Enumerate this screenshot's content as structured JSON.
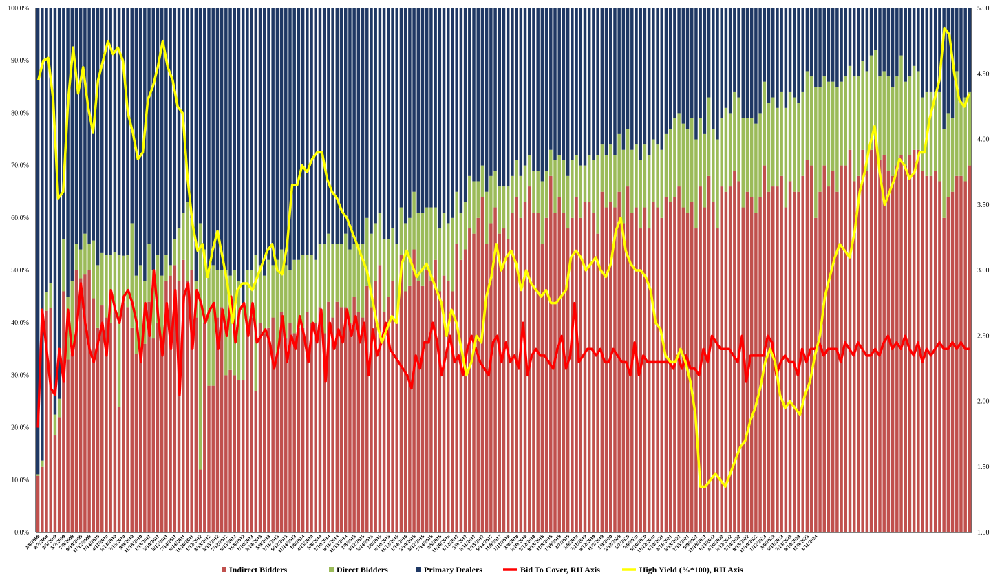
{
  "chart_data": {
    "type": "bar",
    "stacked": true,
    "title": "",
    "left_axis": {
      "ticks": [
        "0.0%",
        "10.0%",
        "20.0%",
        "30.0%",
        "40.0%",
        "50.0%",
        "60.0%",
        "70.0%",
        "80.0%",
        "90.0%",
        "100.0%"
      ],
      "range": [
        0,
        100
      ]
    },
    "right_axis": {
      "ticks": [
        "1.00",
        "1.50",
        "2.00",
        "2.50",
        "3.00",
        "3.50",
        "4.00",
        "4.50",
        "5.00"
      ],
      "range": [
        1.0,
        5.0
      ]
    },
    "x_tick_labels": [
      "2/8/2008",
      "8/7/2008",
      "2/5/2009",
      "5/7/2009",
      "7/9/2009",
      "9/10/2009",
      "11/12/2009",
      "1/14/2010",
      "3/11/2010",
      "5/13/2010",
      "7/15/2010",
      "9/9/2010",
      "11/18/2010",
      "1/13/2011",
      "3/10/2011",
      "5/12/2011",
      "7/14/2011",
      "9/14/2011",
      "11/10/2011",
      "1/12/2012",
      "3/13/2012",
      "5/15/2012",
      "7/12/2012",
      "9/13/2012",
      "11/8/2012",
      "1/10/2013",
      "3/14/2013",
      "5/9/2013",
      "7/11/2013",
      "9/12/2013",
      "11/14/2013",
      "1/9/2014",
      "3/13/2014",
      "5/8/2014",
      "7/10/2014",
      "9/11/2014",
      "11/13/2014",
      "1/8/2015",
      "3/12/2015",
      "5/14/2015",
      "7/9/2015",
      "9/10/2015",
      "11/12/2015",
      "1/14/2016",
      "3/10/2016",
      "5/12/2016",
      "7/14/2016",
      "9/8/2016",
      "11/10/2016",
      "1/12/2017",
      "3/9/2017",
      "5/11/2017",
      "7/13/2017",
      "9/14/2017",
      "11/9/2017",
      "1/11/2018",
      "3/8/2018",
      "5/10/2018",
      "7/12/2018",
      "9/13/2018",
      "11/8/2018",
      "1/10/2019",
      "3/7/2019",
      "5/9/2019",
      "7/11/2019",
      "9/12/2019",
      "11/7/2019",
      "1/9/2020",
      "3/12/2020",
      "5/7/2020",
      "7/9/2020",
      "9/10/2020",
      "11/12/2020",
      "1/14/2021",
      "3/11/2021",
      "5/13/2021",
      "7/15/2021",
      "9/9/2021",
      "11/10/2021",
      "1/13/2022",
      "3/10/2022",
      "5/12/2022",
      "7/14/2022",
      "9/13/2022",
      "11/10/2022",
      "1/12/2023",
      "3/9/2023",
      "5/11/2023",
      "7/13/2023",
      "9/14/2023",
      "11/9/2023",
      "1/11/2024"
    ],
    "bars_per_label": 2,
    "indirect": [
      10.8,
      12.5,
      42.3,
      42.8,
      18.5,
      22,
      46,
      33,
      34,
      50,
      48.5,
      49.2,
      50,
      44.7,
      39,
      43.3,
      41,
      40,
      42,
      24,
      43.8,
      43,
      39,
      34,
      35,
      36,
      44,
      37,
      40,
      35,
      48,
      49,
      51,
      48,
      52,
      48,
      50,
      41,
      12,
      40,
      28,
      28,
      41,
      43,
      30,
      31,
      30,
      29,
      29,
      39,
      41,
      27,
      40,
      38,
      39,
      41,
      34,
      42,
      37,
      40,
      38,
      39,
      39,
      42,
      40,
      40,
      43,
      38,
      44,
      41,
      44,
      43,
      43,
      40,
      45,
      42,
      41,
      47,
      43,
      48,
      51,
      42,
      45,
      48,
      40,
      53,
      46,
      47,
      54,
      48,
      47,
      50,
      48,
      52,
      46,
      49,
      48,
      46,
      55,
      52,
      54,
      58,
      57,
      60,
      64,
      55,
      59,
      62,
      57,
      58,
      56,
      61,
      64,
      60,
      63,
      66,
      61,
      61,
      55,
      60,
      68,
      61,
      64,
      61,
      58,
      60,
      64,
      60,
      63,
      63,
      61,
      57,
      65,
      62,
      63,
      62,
      65,
      59,
      66,
      61,
      62,
      58,
      62,
      58,
      63,
      62,
      60,
      64,
      63,
      64,
      66,
      62,
      61,
      63,
      58,
      66,
      62,
      68,
      63,
      58,
      66,
      65,
      66,
      69,
      67,
      62,
      65,
      64,
      61,
      64,
      70,
      65,
      66,
      66,
      68,
      62,
      67,
      65,
      65,
      68,
      71,
      70,
      60,
      65,
      70,
      66,
      69,
      65,
      70,
      70,
      73,
      67,
      68,
      73,
      69,
      73,
      75,
      71,
      72,
      69,
      68,
      70,
      72,
      70,
      72,
      73,
      73,
      69,
      68,
      68,
      69,
      67,
      60,
      64,
      65,
      68,
      68,
      67,
      70
    ],
    "direct": [
      0.3,
      1.2,
      3.5,
      4.8,
      4,
      3.5,
      10,
      12,
      14,
      5,
      5.5,
      7.8,
      5,
      11,
      12,
      10,
      12,
      13,
      11.5,
      29,
      9,
      10,
      20,
      15,
      16,
      12,
      11,
      13,
      13,
      14,
      5,
      2,
      5,
      10,
      9,
      15,
      10,
      7,
      47,
      14,
      22,
      23,
      9,
      7,
      20,
      18,
      20,
      19,
      14,
      11,
      9,
      26,
      11,
      11,
      13,
      10,
      18,
      12,
      14,
      10,
      14,
      13,
      14,
      11,
      13,
      12,
      12,
      17,
      13,
      14,
      11,
      12,
      14,
      14,
      10,
      13,
      14,
      13,
      14,
      11,
      10,
      14,
      11,
      10,
      15,
      9,
      13,
      13,
      11,
      13,
      14,
      12,
      14,
      10,
      12,
      12,
      11,
      14,
      10,
      9,
      9,
      10,
      10,
      7,
      6,
      10,
      9,
      7,
      9,
      8,
      10,
      7,
      7,
      8,
      7,
      6,
      8,
      8,
      12,
      9,
      5,
      10,
      8,
      10,
      10,
      11,
      8,
      10,
      7,
      9,
      10,
      15,
      9,
      10,
      11,
      10,
      11,
      14,
      11,
      12,
      12,
      13,
      12,
      14,
      12,
      12,
      13,
      12,
      14,
      15,
      14,
      16,
      16,
      16,
      17,
      13,
      14,
      15,
      14,
      17,
      13,
      16,
      14,
      15,
      16,
      17,
      14,
      15,
      17,
      16,
      16,
      17,
      17,
      15,
      16,
      19,
      17,
      18,
      17,
      16,
      17,
      17,
      25,
      20,
      17,
      20,
      17,
      20,
      16,
      17,
      16,
      20,
      19,
      17,
      19,
      18,
      17,
      16,
      16,
      18,
      17,
      17,
      19,
      16,
      15,
      16,
      15,
      14,
      16,
      16,
      15,
      17,
      17,
      16,
      14,
      20,
      14,
      16,
      14,
      14,
      13,
      15
    ]
  },
  "secondary_series": {
    "bid_to_cover": [
      1.8,
      2.7,
      2.4,
      2.1,
      2.05,
      2.4,
      2.15,
      2.7,
      2.35,
      2.55,
      2.9,
      2.6,
      2.4,
      2.3,
      2.45,
      2.6,
      2.35,
      2.85,
      2.7,
      2.6,
      2.8,
      2.85,
      2.75,
      2.6,
      2.3,
      2.75,
      2.5,
      3.0,
      2.65,
      2.35,
      2.75,
      2.4,
      2.85,
      2.05,
      2.8,
      2.9,
      2.4,
      2.85,
      2.75,
      2.6,
      2.7,
      2.75,
      2.4,
      2.7,
      2.5,
      2.8,
      2.45,
      2.7,
      2.75,
      2.5,
      2.75,
      2.45,
      2.5,
      2.55,
      2.45,
      2.25,
      2.4,
      2.65,
      2.3,
      2.5,
      2.4,
      2.65,
      2.5,
      2.3,
      2.6,
      2.45,
      2.7,
      2.15,
      2.6,
      2.4,
      2.55,
      2.45,
      2.7,
      2.5,
      2.65,
      2.45,
      2.6,
      2.2,
      2.55,
      2.35,
      2.45,
      2.6,
      2.4,
      2.35,
      2.3,
      2.25,
      2.2,
      2.1,
      2.35,
      2.25,
      2.45,
      2.45,
      2.6,
      2.45,
      2.2,
      2.35,
      2.5,
      2.3,
      2.35,
      2.2,
      2.4,
      2.5,
      2.4,
      2.3,
      2.25,
      2.2,
      2.45,
      2.5,
      2.3,
      2.45,
      2.3,
      2.35,
      2.25,
      2.6,
      2.2,
      2.35,
      2.4,
      2.35,
      2.35,
      2.3,
      2.25,
      2.4,
      2.5,
      2.25,
      2.35,
      2.75,
      2.3,
      2.35,
      2.4,
      2.4,
      2.35,
      2.4,
      2.3,
      2.3,
      2.4,
      2.35,
      2.3,
      2.3,
      2.2,
      2.45,
      2.2,
      2.35,
      2.3,
      2.3,
      2.3,
      2.3,
      2.3,
      2.3,
      2.25,
      2.35,
      2.25,
      2.35,
      2.25,
      2.25,
      2.2,
      2.4,
      2.3,
      2.5,
      2.45,
      2.4,
      2.4,
      2.4,
      2.35,
      2.3,
      2.5,
      2.15,
      2.35,
      2.35,
      2.35,
      2.35,
      2.5,
      2.45,
      2.2,
      2.3,
      2.35,
      2.3,
      2.3,
      2.2,
      2.4,
      2.3,
      2.4,
      2.4,
      2.45,
      2.35,
      2.4,
      2.4,
      2.4,
      2.3,
      2.45,
      2.4,
      2.35,
      2.45,
      2.4,
      2.35,
      2.35,
      2.4,
      2.35,
      2.45,
      2.5,
      2.4,
      2.45,
      2.4,
      2.5,
      2.4,
      2.35,
      2.45,
      2.3,
      2.4,
      2.35,
      2.4,
      2.45,
      2.4,
      2.4,
      2.45,
      2.4,
      2.45,
      2.4,
      2.4
    ],
    "high_yield": [
      4.45,
      4.6,
      4.62,
      4.3,
      3.55,
      3.6,
      4.3,
      4.7,
      4.35,
      4.55,
      4.25,
      4.05,
      4.45,
      4.6,
      4.75,
      4.65,
      4.7,
      4.6,
      4.2,
      4.05,
      3.85,
      3.9,
      4.3,
      4.4,
      4.55,
      4.75,
      4.55,
      4.45,
      4.25,
      4.2,
      3.7,
      3.35,
      3.15,
      3.2,
      2.95,
      3.15,
      3.3,
      3.1,
      2.9,
      2.6,
      2.85,
      2.9,
      2.9,
      2.85,
      2.95,
      3.05,
      3.15,
      3.2,
      3.0,
      2.97,
      3.2,
      3.65,
      3.65,
      3.8,
      3.75,
      3.85,
      3.9,
      3.9,
      3.7,
      3.6,
      3.55,
      3.45,
      3.4,
      3.3,
      3.2,
      3.1,
      3.0,
      2.8,
      2.6,
      2.45,
      2.55,
      2.65,
      2.6,
      3.05,
      3.15,
      3.05,
      2.95,
      3.0,
      3.05,
      2.95,
      2.85,
      2.75,
      2.5,
      2.7,
      2.6,
      2.4,
      2.2,
      2.3,
      2.5,
      2.45,
      2.8,
      2.95,
      3.2,
      3.0,
      3.1,
      3.15,
      3.05,
      2.85,
      3.0,
      2.9,
      2.85,
      2.8,
      2.85,
      2.75,
      2.75,
      2.8,
      2.85,
      3.1,
      3.15,
      3.1,
      3.0,
      3.05,
      3.1,
      3.0,
      2.95,
      3.05,
      3.3,
      3.4,
      3.15,
      3.05,
      3.0,
      3.0,
      2.95,
      2.85,
      2.6,
      2.55,
      2.35,
      2.3,
      2.3,
      2.4,
      2.3,
      2.15,
      1.9,
      1.35,
      1.35,
      1.4,
      1.45,
      1.4,
      1.35,
      1.45,
      1.55,
      1.65,
      1.7,
      1.85,
      1.95,
      2.1,
      2.3,
      2.4,
      2.3,
      2.05,
      1.95,
      2.0,
      1.95,
      1.9,
      2.05,
      2.15,
      2.35,
      2.5,
      2.8,
      2.95,
      3.1,
      3.2,
      3.15,
      3.1,
      3.3,
      3.6,
      3.75,
      3.95,
      4.1,
      3.75,
      3.5,
      3.6,
      3.7,
      3.85,
      3.8,
      3.7,
      3.75,
      3.9,
      3.9,
      4.15,
      4.3,
      4.45,
      4.85,
      4.8,
      4.5,
      4.3,
      4.25,
      4.35
    ]
  },
  "legend": [
    {
      "label": "Indirect Bidders",
      "color": "#c0504d",
      "kind": "bar"
    },
    {
      "label": "Direct Bidders",
      "color": "#9bbb59",
      "kind": "bar"
    },
    {
      "label": "Primary Dealers",
      "color": "#1f3864",
      "kind": "bar"
    },
    {
      "label": "Bid To Cover, RH Axis",
      "color": "#ff0000",
      "kind": "line"
    },
    {
      "label": "High Yield (%*100), RH Axis",
      "color": "#ffff00",
      "kind": "line"
    }
  ],
  "colors": {
    "indirect": "#c0504d",
    "direct": "#9bbb59",
    "dealers": "#1f3864",
    "bid_to_cover": "#ff0000",
    "high_yield": "#ffff00"
  }
}
